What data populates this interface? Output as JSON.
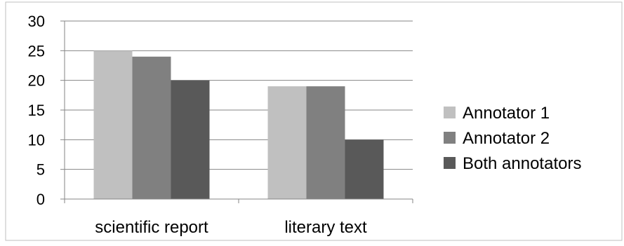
{
  "chart_data": {
    "type": "bar",
    "categories": [
      "scientific report",
      "literary text"
    ],
    "series": [
      {
        "name": "Annotator 1",
        "values": [
          25,
          19
        ],
        "color": "#c0c0c0"
      },
      {
        "name": "Annotator 2",
        "values": [
          24,
          19
        ],
        "color": "#808080"
      },
      {
        "name": "Both annotators",
        "values": [
          20,
          10
        ],
        "color": "#595959"
      }
    ],
    "title": "",
    "xlabel": "",
    "ylabel": "",
    "ylim": [
      0,
      30
    ],
    "yticks": [
      "0",
      "5",
      "10",
      "15",
      "20",
      "25",
      "30"
    ],
    "grid": true,
    "legend_position": "right"
  }
}
